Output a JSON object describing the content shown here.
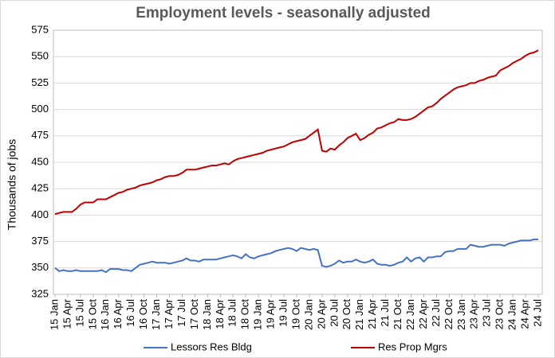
{
  "chart_data": {
    "type": "line",
    "title": "Employment levels - seasonally adjusted",
    "y_label": "Thousands of jobs",
    "categories": [
      "15 Jan",
      null,
      null,
      "15 Apr",
      null,
      null,
      "15 Jul",
      null,
      null,
      "15 Oct",
      null,
      null,
      "16 Jan",
      null,
      null,
      "16 Apr",
      null,
      null,
      "16 Jul",
      null,
      null,
      "16 Oct",
      null,
      null,
      "17 Jan",
      null,
      null,
      "17 Apr",
      null,
      null,
      "17 Jul",
      null,
      null,
      "17 Oct",
      null,
      null,
      "18 Jan",
      null,
      null,
      "18 Apr",
      null,
      null,
      "18 Jul",
      null,
      null,
      "18 Oct",
      null,
      null,
      "19 Jan",
      null,
      null,
      "19 Apr",
      null,
      null,
      "19 Jul",
      null,
      null,
      "19 Oct",
      null,
      null,
      "20 Jan",
      null,
      null,
      "20 Apr",
      null,
      null,
      "20 Jul",
      null,
      null,
      "20 Oct",
      null,
      null,
      "21 Jan",
      null,
      null,
      "21 Apr",
      null,
      null,
      "21 Jul",
      null,
      null,
      "21 Oct",
      null,
      null,
      "22 Jan",
      null,
      null,
      "22 Apr",
      null,
      null,
      "22 Jul",
      null,
      null,
      "22 Oct",
      null,
      null,
      "23 Jan",
      null,
      null,
      "23 Apr",
      null,
      null,
      "23 Jul",
      null,
      null,
      "23 Oct",
      null,
      null,
      "24 Jan",
      null,
      null,
      "24 Apr",
      null,
      null,
      "24 Jul"
    ],
    "series": [
      {
        "name": "Lessors Res Bldg",
        "color": "#4472c4",
        "values": [
          350,
          347,
          348,
          347,
          347,
          348,
          347,
          347,
          347,
          347,
          347,
          348,
          346,
          349,
          349,
          349,
          348,
          348,
          347,
          350,
          353,
          354,
          355,
          356,
          355,
          355,
          355,
          354,
          355,
          356,
          357,
          359,
          357,
          357,
          356,
          358,
          358,
          358,
          358,
          359,
          360,
          361,
          362,
          361,
          359,
          363,
          360,
          359,
          361,
          362,
          363,
          364,
          366,
          367,
          368,
          369,
          368,
          366,
          369,
          368,
          367,
          368,
          367,
          352,
          351,
          352,
          354,
          357,
          355,
          356,
          356,
          358,
          356,
          355,
          356,
          358,
          354,
          353,
          353,
          352,
          353,
          355,
          356,
          360,
          356,
          359,
          360,
          356,
          360,
          360,
          361,
          361,
          365,
          366,
          366,
          368,
          368,
          368,
          372,
          371,
          370,
          370,
          371,
          372,
          372,
          372,
          371,
          373,
          374,
          375,
          376,
          376,
          376,
          377,
          377
        ]
      },
      {
        "name": "Res Prop Mgrs",
        "color": "#c00000",
        "values": [
          401,
          402,
          403,
          403,
          403,
          406,
          410,
          412,
          412,
          412,
          415,
          415,
          415,
          417,
          419,
          421,
          422,
          424,
          425,
          426,
          428,
          429,
          430,
          431,
          433,
          434,
          436,
          437,
          437,
          438,
          440,
          443,
          443,
          443,
          444,
          445,
          446,
          447,
          447,
          448,
          449,
          448,
          451,
          453,
          454,
          455,
          456,
          457,
          458,
          459,
          461,
          462,
          463,
          464,
          465,
          467,
          469,
          470,
          471,
          472,
          475,
          478,
          481,
          461,
          460,
          463,
          462,
          466,
          469,
          473,
          475,
          477,
          471,
          473,
          476,
          478,
          482,
          483,
          485,
          487,
          488,
          491,
          490,
          490,
          491,
          493,
          496,
          499,
          502,
          503,
          506,
          510,
          513,
          516,
          519,
          521,
          522,
          523,
          525,
          525,
          527,
          528,
          530,
          531,
          532,
          537,
          539,
          541,
          544,
          546,
          548,
          551,
          553,
          554,
          556
        ]
      }
    ],
    "ylim": [
      325,
      575
    ],
    "yticks": [
      325,
      350,
      375,
      400,
      425,
      450,
      475,
      500,
      525,
      550,
      575
    ],
    "grid": true
  }
}
